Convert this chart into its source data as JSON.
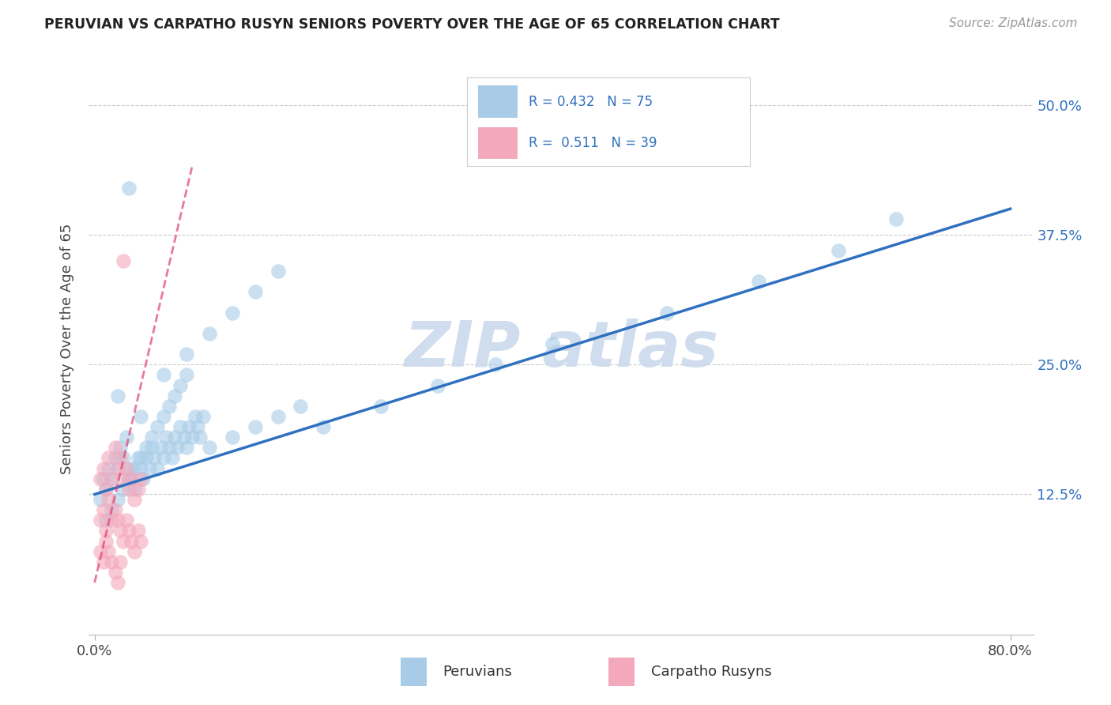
{
  "title": "PERUVIAN VS CARPATHO RUSYN SENIORS POVERTY OVER THE AGE OF 65 CORRELATION CHART",
  "source": "Source: ZipAtlas.com",
  "ylabel": "Seniors Poverty Over the Age of 65",
  "xlim": [
    -0.005,
    0.82
  ],
  "ylim": [
    -0.01,
    0.54
  ],
  "xticks": [
    0.0,
    0.8
  ],
  "xticklabels": [
    "0.0%",
    "80.0%"
  ],
  "yticks": [
    0.0,
    0.125,
    0.25,
    0.375,
    0.5
  ],
  "yticklabels": [
    "",
    "12.5%",
    "25.0%",
    "37.5%",
    "50.0%"
  ],
  "peruvian_R": 0.432,
  "peruvian_N": 75,
  "carpatho_R": 0.511,
  "carpatho_N": 39,
  "peruvian_color": "#a8cce8",
  "carpatho_color": "#f4a8bc",
  "peruvian_line_color": "#3070c0",
  "carpatho_line_color": "#e04070",
  "watermark_color": "#c8d8ec",
  "legend_label_1": "Peruvians",
  "legend_label_2": "Carpatho Rusyns",
  "peruvian_line_x0": 0.0,
  "peruvian_line_y0": 0.125,
  "peruvian_line_x1": 0.8,
  "peruvian_line_y1": 0.4,
  "carpatho_line_x0": 0.0,
  "carpatho_line_y0": 0.04,
  "carpatho_line_x1": 0.085,
  "carpatho_line_y1": 0.44,
  "peruvian_x": [
    0.005,
    0.008,
    0.01,
    0.012,
    0.015,
    0.018,
    0.02,
    0.022,
    0.025,
    0.028,
    0.03,
    0.032,
    0.035,
    0.038,
    0.04,
    0.042,
    0.045,
    0.048,
    0.05,
    0.052,
    0.055,
    0.058,
    0.06,
    0.062,
    0.065,
    0.068,
    0.07,
    0.072,
    0.075,
    0.078,
    0.08,
    0.082,
    0.085,
    0.088,
    0.09,
    0.092,
    0.095,
    0.01,
    0.015,
    0.02,
    0.025,
    0.03,
    0.035,
    0.04,
    0.045,
    0.05,
    0.055,
    0.06,
    0.065,
    0.07,
    0.075,
    0.08,
    0.1,
    0.12,
    0.14,
    0.16,
    0.18,
    0.2,
    0.25,
    0.3,
    0.35,
    0.4,
    0.5,
    0.58,
    0.65,
    0.7,
    0.03,
    0.02,
    0.04,
    0.06,
    0.08,
    0.1,
    0.12,
    0.14,
    0.16
  ],
  "peruvian_y": [
    0.12,
    0.14,
    0.13,
    0.15,
    0.14,
    0.16,
    0.15,
    0.17,
    0.16,
    0.18,
    0.14,
    0.15,
    0.13,
    0.16,
    0.15,
    0.14,
    0.16,
    0.15,
    0.17,
    0.16,
    0.15,
    0.17,
    0.16,
    0.18,
    0.17,
    0.16,
    0.18,
    0.17,
    0.19,
    0.18,
    0.17,
    0.19,
    0.18,
    0.2,
    0.19,
    0.18,
    0.2,
    0.1,
    0.11,
    0.12,
    0.13,
    0.14,
    0.15,
    0.16,
    0.17,
    0.18,
    0.19,
    0.2,
    0.21,
    0.22,
    0.23,
    0.24,
    0.17,
    0.18,
    0.19,
    0.2,
    0.21,
    0.19,
    0.21,
    0.23,
    0.25,
    0.27,
    0.3,
    0.33,
    0.36,
    0.39,
    0.42,
    0.22,
    0.2,
    0.24,
    0.26,
    0.28,
    0.3,
    0.32,
    0.34
  ],
  "carpatho_x": [
    0.005,
    0.008,
    0.01,
    0.012,
    0.015,
    0.018,
    0.02,
    0.022,
    0.025,
    0.028,
    0.03,
    0.032,
    0.035,
    0.038,
    0.04,
    0.005,
    0.008,
    0.01,
    0.012,
    0.015,
    0.018,
    0.02,
    0.022,
    0.025,
    0.028,
    0.03,
    0.032,
    0.035,
    0.038,
    0.04,
    0.005,
    0.008,
    0.01,
    0.012,
    0.015,
    0.018,
    0.02,
    0.022,
    0.025
  ],
  "carpatho_y": [
    0.14,
    0.15,
    0.13,
    0.16,
    0.14,
    0.17,
    0.15,
    0.16,
    0.14,
    0.15,
    0.13,
    0.14,
    0.12,
    0.13,
    0.14,
    0.1,
    0.11,
    0.09,
    0.12,
    0.1,
    0.11,
    0.1,
    0.09,
    0.08,
    0.1,
    0.09,
    0.08,
    0.07,
    0.09,
    0.08,
    0.07,
    0.06,
    0.08,
    0.07,
    0.06,
    0.05,
    0.04,
    0.06,
    0.35
  ]
}
